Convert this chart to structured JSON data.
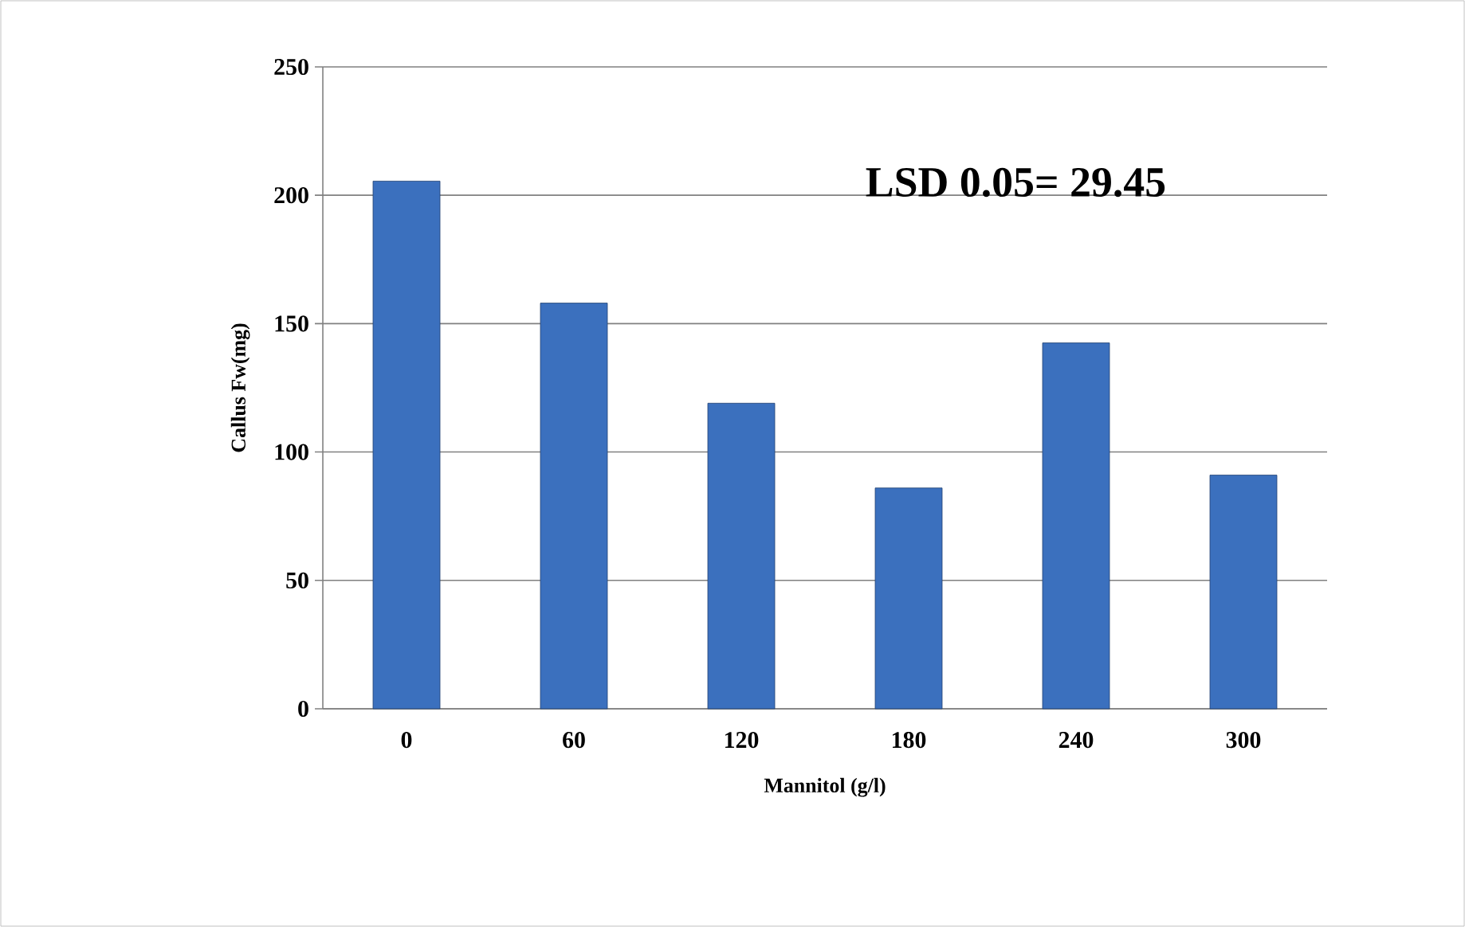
{
  "chart_data": {
    "type": "bar",
    "xlabel": "Mannitol (g/l)",
    "ylabel": "Callus Fw(mg)",
    "categories": [
      "0",
      "60",
      "120",
      "180",
      "240",
      "300"
    ],
    "values": [
      205.5,
      158,
      119,
      86,
      142.5,
      91
    ],
    "color": "#3b70be",
    "ylim": [
      0,
      250
    ],
    "yticks": [
      0,
      50,
      100,
      150,
      200,
      250
    ],
    "grid": "y",
    "annotations": [
      "LSD 0.05= 29.45"
    ]
  }
}
